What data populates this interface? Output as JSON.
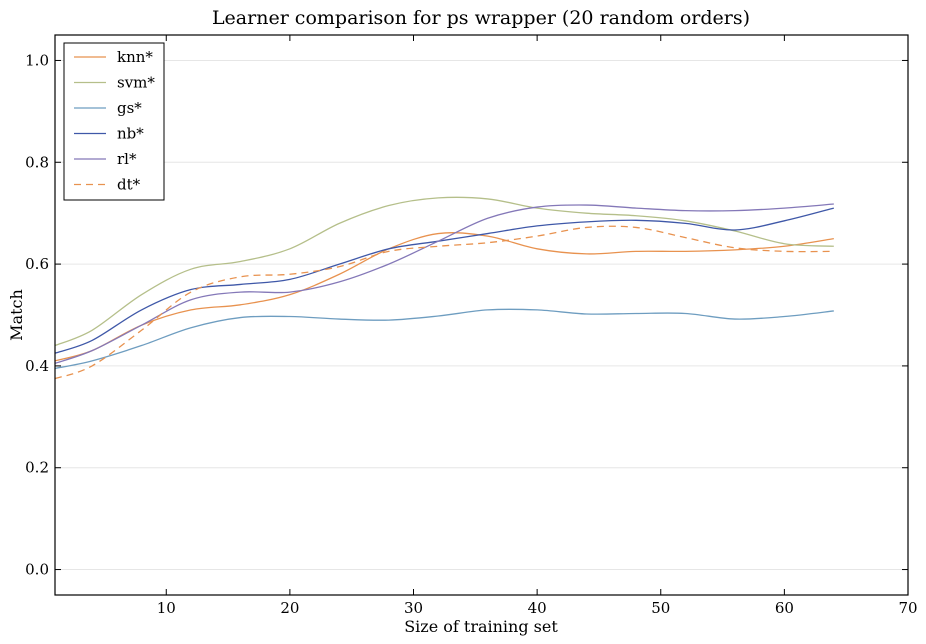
{
  "chart_data": {
    "type": "line",
    "title": "Learner comparison for ps wrapper (20 random orders)",
    "xlabel": "Size of training set",
    "ylabel": "Match",
    "xlim": [
      1,
      70
    ],
    "ylim": [
      -0.05,
      1.05
    ],
    "xticks": [
      10,
      20,
      30,
      40,
      50,
      60,
      70
    ],
    "yticks": [
      0.0,
      0.2,
      0.4,
      0.6,
      0.8,
      1.0
    ],
    "grid": "horizontal",
    "legend_position": "top-left",
    "series": [
      {
        "name": "knn*",
        "color": "#e8924f",
        "style": "solid",
        "x": [
          1,
          4,
          8,
          12,
          16,
          20,
          24,
          28,
          32,
          36,
          40,
          44,
          48,
          52,
          56,
          60,
          64
        ],
        "y": [
          0.41,
          0.43,
          0.48,
          0.51,
          0.52,
          0.54,
          0.58,
          0.63,
          0.66,
          0.655,
          0.63,
          0.62,
          0.625,
          0.625,
          0.628,
          0.635,
          0.65
        ]
      },
      {
        "name": "svm*",
        "color": "#b5bf8a",
        "style": "solid",
        "x": [
          1,
          4,
          8,
          12,
          16,
          20,
          24,
          28,
          32,
          36,
          40,
          44,
          48,
          52,
          56,
          60,
          64
        ],
        "y": [
          0.44,
          0.47,
          0.54,
          0.59,
          0.605,
          0.63,
          0.68,
          0.715,
          0.73,
          0.728,
          0.71,
          0.7,
          0.695,
          0.685,
          0.665,
          0.64,
          0.635
        ]
      },
      {
        "name": "gs*",
        "color": "#6e9dc0",
        "style": "solid",
        "x": [
          1,
          4,
          8,
          12,
          16,
          20,
          24,
          28,
          32,
          36,
          40,
          44,
          48,
          52,
          56,
          60,
          64
        ],
        "y": [
          0.395,
          0.41,
          0.44,
          0.475,
          0.495,
          0.497,
          0.492,
          0.49,
          0.498,
          0.51,
          0.51,
          0.502,
          0.503,
          0.503,
          0.492,
          0.497,
          0.508
        ]
      },
      {
        "name": "nb*",
        "color": "#3f58a8",
        "style": "solid",
        "x": [
          1,
          4,
          8,
          12,
          16,
          20,
          24,
          28,
          32,
          36,
          40,
          44,
          48,
          52,
          56,
          60,
          64
        ],
        "y": [
          0.425,
          0.45,
          0.51,
          0.55,
          0.56,
          0.57,
          0.6,
          0.63,
          0.645,
          0.66,
          0.675,
          0.683,
          0.686,
          0.68,
          0.667,
          0.685,
          0.71
        ]
      },
      {
        "name": "rl*",
        "color": "#8478b8",
        "style": "solid",
        "x": [
          1,
          4,
          8,
          12,
          16,
          20,
          24,
          28,
          32,
          36,
          40,
          44,
          48,
          52,
          56,
          60,
          64
        ],
        "y": [
          0.405,
          0.43,
          0.48,
          0.53,
          0.545,
          0.545,
          0.565,
          0.6,
          0.645,
          0.69,
          0.712,
          0.716,
          0.71,
          0.705,
          0.705,
          0.71,
          0.718
        ]
      },
      {
        "name": "dt*",
        "color": "#e8924f",
        "style": "dashed",
        "x": [
          1,
          4,
          8,
          12,
          16,
          20,
          24,
          28,
          32,
          36,
          40,
          44,
          48,
          52,
          56,
          60,
          64
        ],
        "y": [
          0.375,
          0.4,
          0.47,
          0.545,
          0.575,
          0.58,
          0.595,
          0.625,
          0.635,
          0.642,
          0.655,
          0.672,
          0.672,
          0.652,
          0.632,
          0.625,
          0.625
        ]
      }
    ]
  }
}
